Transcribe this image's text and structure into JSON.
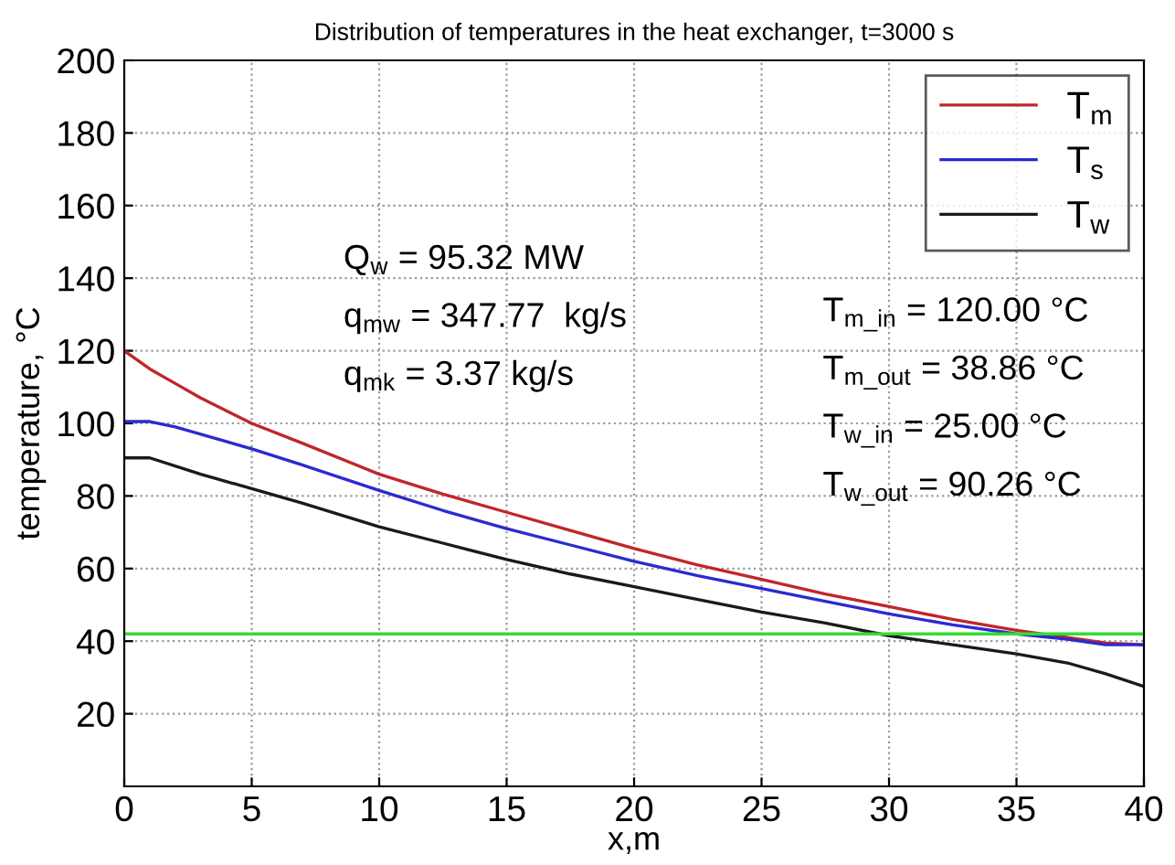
{
  "chart_data": {
    "type": "line",
    "title": "Distribution of temperatures in the heat exchanger, t=3000 s",
    "xlabel": "x,m",
    "ylabel": "temperature, °C",
    "xlim": [
      0,
      40
    ],
    "xticks": [
      0,
      5,
      10,
      15,
      20,
      25,
      30,
      35,
      40
    ],
    "ylim": [
      0,
      200
    ],
    "yticks": [
      20,
      40,
      60,
      80,
      100,
      120,
      140,
      160,
      180,
      200
    ],
    "grid": true,
    "legend": "top right",
    "line_style": "solid",
    "series": [
      {
        "name": "T$_{m}$",
        "color": "#c0262b",
        "x": [
          0,
          1,
          2,
          3,
          5,
          7,
          10,
          12.5,
          15,
          17.5,
          20,
          22.5,
          25,
          27.5,
          30,
          32.5,
          35,
          37,
          38.5,
          40
        ],
        "values": [
          120,
          115,
          111,
          107,
          100,
          94.5,
          86,
          80.5,
          75.5,
          70.5,
          65.5,
          61,
          57,
          53,
          49.5,
          46,
          43,
          41,
          39.5,
          39
        ]
      },
      {
        "name": "T$_{s}$",
        "color": "#2b2bd0",
        "x": [
          0,
          1,
          2,
          3,
          5,
          7,
          10,
          12.5,
          15,
          17.5,
          20,
          22.5,
          25,
          27.5,
          30,
          32.5,
          35,
          37,
          38.5,
          40
        ],
        "values": [
          100.5,
          100.5,
          99,
          97,
          93,
          88.5,
          81.5,
          76,
          71,
          66.5,
          62,
          58,
          54.5,
          51,
          47.5,
          44.5,
          42,
          40.5,
          39,
          39
        ]
      },
      {
        "name": "T$_{w}$",
        "color": "#1a1a1a",
        "x": [
          0,
          1,
          3,
          5,
          7,
          10,
          12.5,
          15,
          17.5,
          20,
          22.5,
          25,
          27.5,
          30,
          32.5,
          35,
          37,
          38.5,
          40
        ],
        "values": [
          90.5,
          90.5,
          86,
          82,
          78,
          71.5,
          67,
          62.5,
          58.5,
          55,
          51.5,
          48,
          45,
          41.5,
          39,
          36.5,
          34,
          31,
          27.5
        ]
      }
    ],
    "ref_lines": [
      {
        "axis": "y",
        "value": 42,
        "color": "#33dd33"
      }
    ],
    "annotations": [
      "Q$_{w}$ = 95.32 MW",
      "q$_{mw}$ = 347.77  kg/s",
      "q$_{mk}$ = 3.37 kg/s",
      "T$_{m_in}$ = 120.00 °C",
      "T$_{m_out}$ = 38.86 °C",
      "T$_{w_in}$ = 25.00 °C",
      "T$_{w_out}$ = 90.26 °C"
    ]
  }
}
